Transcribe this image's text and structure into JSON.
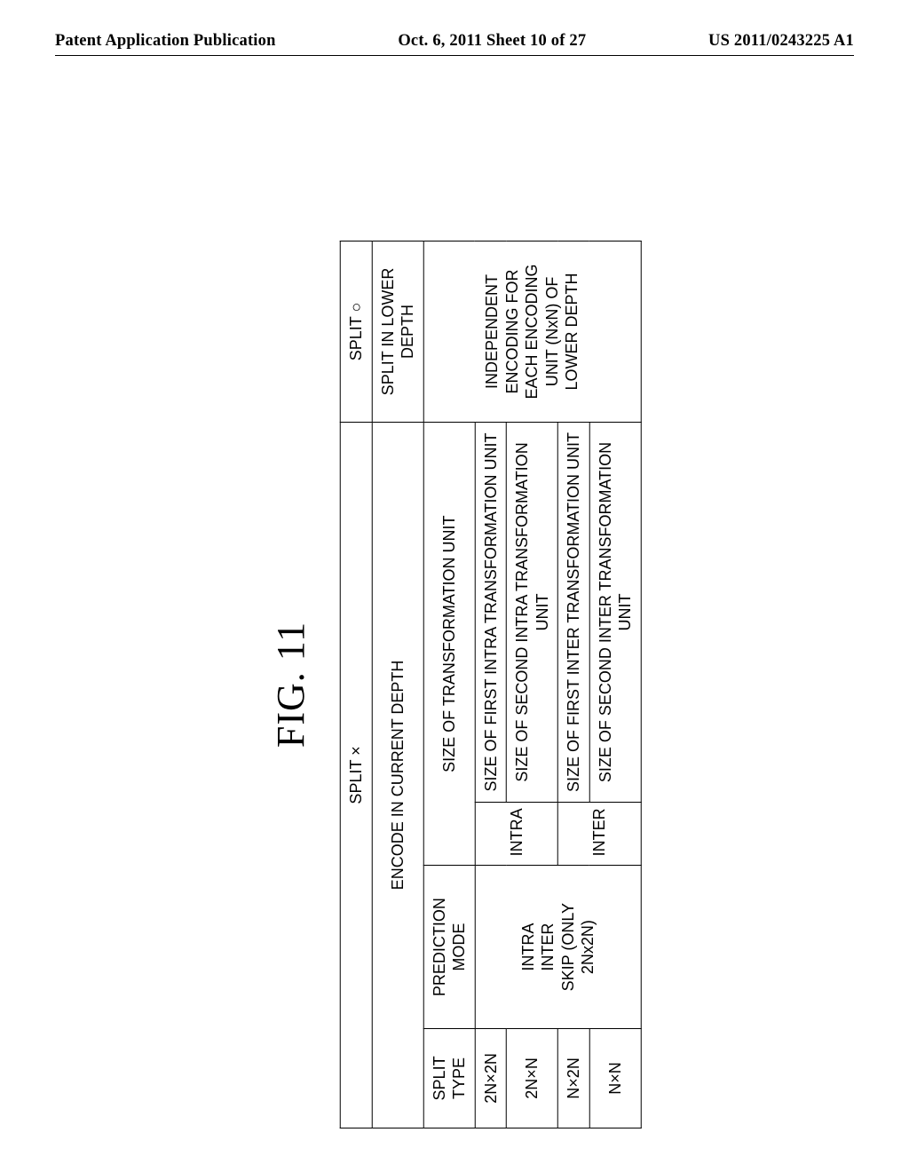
{
  "header": {
    "left": "Patent Application Publication",
    "center": "Oct. 6, 2011  Sheet 10 of 27",
    "right": "US 2011/0243225 A1"
  },
  "figure": {
    "caption": "FIG. 11",
    "top_row": {
      "split_x": "SPLIT ×",
      "split_o": "SPLIT ○"
    },
    "row_encode": {
      "encode_current": "ENCODE IN CURRENT DEPTH",
      "encode_lower": "SPLIT IN LOWER DEPTH"
    },
    "columns": {
      "split_type": "SPLIT TYPE",
      "pred_mode": "PREDICTION MODE",
      "size_trans": "SIZE OF TRANSFORMATION UNIT"
    },
    "split_types": {
      "st0": "2N×2N",
      "st1": "2N×N",
      "st2": "N×2N",
      "st3": "N×N"
    },
    "pred_modes": {
      "pm0": "INTRA",
      "pm1": "INTER",
      "pm2": "SKIP (ONLY 2Nx2N)"
    },
    "mode_labels": {
      "intra": "INTRA",
      "inter": "INTER"
    },
    "trans_sizes": {
      "t0": "SIZE OF FIRST INTRA TRANSFORMATION UNIT",
      "t1": "SIZE OF SECOND INTRA TRANSFORMATION UNIT",
      "t2": "SIZE OF FIRST INTER TRANSFORMATION UNIT",
      "t3": "SIZE OF SECOND INTER TRANSFORMATION UNIT"
    },
    "right_body": "INDEPENDENT ENCODING FOR EACH ENCODING UNIT (NxN) OF LOWER DEPTH"
  },
  "styles": {
    "font_family_serif": "Times New Roman",
    "font_family_sans": "Arial",
    "border_color": "#000000",
    "background_color": "#ffffff",
    "caption_fontsize_pt": 33,
    "cell_fontsize_pt": 13.5,
    "header_fontsize_pt": 14
  }
}
